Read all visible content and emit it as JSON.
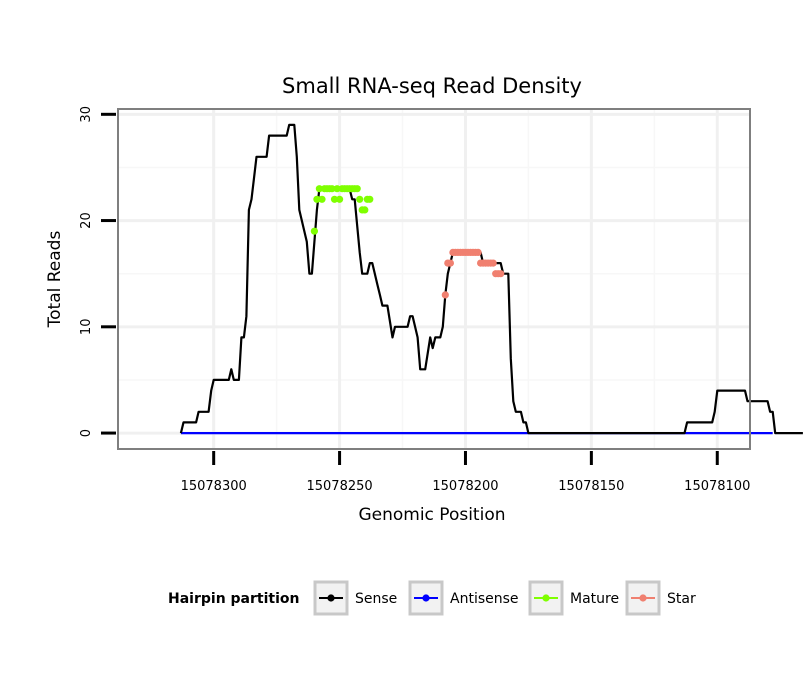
{
  "chart_data": {
    "type": "line",
    "title": "Small RNA-seq Read Density",
    "xlabel": "Genomic Position",
    "ylabel": "Total Reads",
    "xlim": [
      15078338,
      15078087
    ],
    "ylim": [
      -1.5,
      30.5
    ],
    "x_reversed": true,
    "xticks": [
      15078300,
      15078250,
      15078200,
      15078150,
      15078100
    ],
    "xtick_labels": [
      "15078300",
      "15078250",
      "15078200",
      "15078150",
      "15078100"
    ],
    "yticks": [
      0,
      10,
      20,
      30
    ],
    "ytick_labels": [
      "0",
      "10",
      "20",
      "30"
    ],
    "grid": true,
    "legend": {
      "title": "Hairpin partition",
      "position": "bottom",
      "entries": [
        "Sense",
        "Antisense",
        "Mature",
        "Star"
      ]
    },
    "series": [
      {
        "name": "Sense",
        "color": "#000000",
        "style": "line",
        "points": [
          [
            15078313,
            0
          ],
          [
            15078312,
            1
          ],
          [
            15078307,
            1
          ],
          [
            15078306,
            2
          ],
          [
            15078302,
            2
          ],
          [
            15078301,
            4
          ],
          [
            15078300,
            5
          ],
          [
            15078294,
            5
          ],
          [
            15078293,
            6
          ],
          [
            15078292,
            5
          ],
          [
            15078290,
            5
          ],
          [
            15078289,
            9
          ],
          [
            15078288,
            9
          ],
          [
            15078287,
            11
          ],
          [
            15078286,
            21
          ],
          [
            15078285,
            22
          ],
          [
            15078284,
            24
          ],
          [
            15078283,
            26
          ],
          [
            15078279,
            26
          ],
          [
            15078278,
            28
          ],
          [
            15078271,
            28
          ],
          [
            15078270,
            29
          ],
          [
            15078268,
            29
          ],
          [
            15078267,
            26
          ],
          [
            15078266,
            21
          ],
          [
            15078263,
            18
          ],
          [
            15078262,
            15
          ],
          [
            15078261,
            15
          ],
          [
            15078259,
            21
          ],
          [
            15078258,
            23
          ],
          [
            15078246,
            23
          ],
          [
            15078245,
            22
          ],
          [
            15078244,
            22
          ],
          [
            15078242,
            17
          ],
          [
            15078241,
            15
          ],
          [
            15078239,
            15
          ],
          [
            15078238,
            16
          ],
          [
            15078237,
            16
          ],
          [
            15078235,
            14
          ],
          [
            15078234,
            13
          ],
          [
            15078233,
            12
          ],
          [
            15078231,
            12
          ],
          [
            15078229,
            9
          ],
          [
            15078228,
            10
          ],
          [
            15078223,
            10
          ],
          [
            15078222,
            11
          ],
          [
            15078221,
            11
          ],
          [
            15078220,
            10
          ],
          [
            15078219,
            9
          ],
          [
            15078218,
            6
          ],
          [
            15078216,
            6
          ],
          [
            15078214,
            9
          ],
          [
            15078213,
            8
          ],
          [
            15078212,
            9
          ],
          [
            15078210,
            9
          ],
          [
            15078209,
            10
          ],
          [
            15078208,
            13
          ],
          [
            15078207,
            15
          ],
          [
            15078205,
            17
          ],
          [
            15078194,
            17
          ],
          [
            15078193,
            16
          ],
          [
            15078186,
            16
          ],
          [
            15078185,
            15
          ],
          [
            15078183,
            15
          ],
          [
            15078182,
            7
          ],
          [
            15078181,
            3
          ],
          [
            15078180,
            2
          ],
          [
            15078178,
            2
          ],
          [
            15078177,
            1
          ],
          [
            15078176,
            1
          ],
          [
            15078175,
            0
          ],
          [
            15078113,
            0
          ],
          [
            15078112,
            1
          ],
          [
            15078102,
            1
          ],
          [
            15078101,
            2
          ],
          [
            15078100,
            4
          ],
          [
            15078089,
            4
          ],
          [
            15078088,
            3
          ],
          [
            15078080,
            3
          ],
          [
            15078079,
            2
          ],
          [
            15078078,
            2
          ],
          [
            15078077,
            0
          ],
          [
            15078066,
            0
          ]
        ]
      },
      {
        "name": "Antisense",
        "color": "#0000ff",
        "style": "line",
        "points": [
          [
            15078313,
            0
          ],
          [
            15078078,
            0
          ]
        ]
      },
      {
        "name": "Mature",
        "color": "#7fff00",
        "style": "points",
        "points": [
          [
            15078260,
            19
          ],
          [
            15078259,
            22
          ],
          [
            15078258,
            23
          ],
          [
            15078257,
            22
          ],
          [
            15078256,
            23
          ],
          [
            15078255,
            23
          ],
          [
            15078254,
            23
          ],
          [
            15078253,
            23
          ],
          [
            15078252,
            22
          ],
          [
            15078251,
            23
          ],
          [
            15078250,
            22
          ],
          [
            15078249,
            23
          ],
          [
            15078248,
            23
          ],
          [
            15078247,
            23
          ],
          [
            15078246,
            23
          ],
          [
            15078245,
            23
          ],
          [
            15078244,
            23
          ],
          [
            15078243,
            23
          ],
          [
            15078242,
            22
          ],
          [
            15078241,
            21
          ],
          [
            15078240,
            21
          ],
          [
            15078239,
            22
          ],
          [
            15078238,
            22
          ]
        ]
      },
      {
        "name": "Star",
        "color": "#f08070",
        "style": "points",
        "points": [
          [
            15078208,
            13
          ],
          [
            15078207,
            16
          ],
          [
            15078206,
            16
          ],
          [
            15078205,
            17
          ],
          [
            15078204,
            17
          ],
          [
            15078203,
            17
          ],
          [
            15078202,
            17
          ],
          [
            15078201,
            17
          ],
          [
            15078200,
            17
          ],
          [
            15078199,
            17
          ],
          [
            15078198,
            17
          ],
          [
            15078197,
            17
          ],
          [
            15078196,
            17
          ],
          [
            15078195,
            17
          ],
          [
            15078194,
            16
          ],
          [
            15078193,
            16
          ],
          [
            15078192,
            16
          ],
          [
            15078191,
            16
          ],
          [
            15078190,
            16
          ],
          [
            15078189,
            16
          ],
          [
            15078188,
            15
          ],
          [
            15078187,
            15
          ],
          [
            15078186,
            15
          ]
        ]
      }
    ]
  }
}
